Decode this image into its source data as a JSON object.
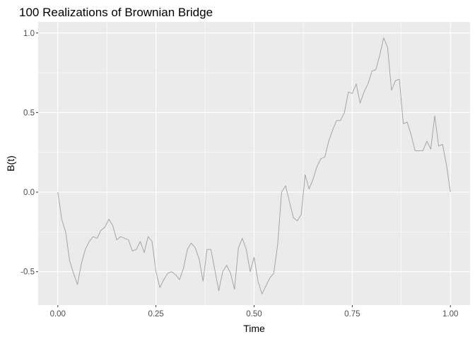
{
  "chart_data": {
    "type": "line",
    "title": "100 Realizations of Brownian Bridge",
    "xlabel": "Time",
    "ylabel": "B(t)",
    "xlim": [
      -0.05,
      1.05
    ],
    "ylim": [
      -0.71,
      1.07
    ],
    "x_ticks": [
      0,
      0.25,
      0.5,
      0.75,
      1.0
    ],
    "x_tick_labels": [
      "0.00",
      "0.25",
      "0.50",
      "0.75",
      "1.00"
    ],
    "y_ticks": [
      -0.5,
      0,
      0.5,
      1.0
    ],
    "y_tick_labels": [
      "-0.5",
      "0.0",
      "0.5",
      "1.0"
    ],
    "grid": true,
    "legend": "none",
    "series": [
      {
        "name": "B(t)",
        "color": "#9e9e9e",
        "values": [
          0.0,
          -0.17,
          -0.25,
          -0.43,
          -0.51,
          -0.58,
          -0.45,
          -0.36,
          -0.31,
          -0.28,
          -0.29,
          -0.24,
          -0.22,
          -0.17,
          -0.21,
          -0.3,
          -0.28,
          -0.29,
          -0.3,
          -0.37,
          -0.36,
          -0.31,
          -0.38,
          -0.28,
          -0.31,
          -0.5,
          -0.6,
          -0.55,
          -0.51,
          -0.5,
          -0.52,
          -0.55,
          -0.48,
          -0.36,
          -0.32,
          -0.35,
          -0.42,
          -0.56,
          -0.36,
          -0.36,
          -0.49,
          -0.62,
          -0.5,
          -0.46,
          -0.51,
          -0.61,
          -0.35,
          -0.29,
          -0.36,
          -0.5,
          -0.41,
          -0.56,
          -0.64,
          -0.59,
          -0.54,
          -0.51,
          -0.33,
          0.0,
          0.04,
          -0.06,
          -0.16,
          -0.18,
          -0.14,
          0.11,
          0.02,
          0.08,
          0.16,
          0.21,
          0.22,
          0.32,
          0.39,
          0.45,
          0.45,
          0.5,
          0.63,
          0.62,
          0.68,
          0.56,
          0.63,
          0.68,
          0.76,
          0.77,
          0.86,
          0.97,
          0.91,
          0.64,
          0.7,
          0.71,
          0.43,
          0.44,
          0.36,
          0.26,
          0.26,
          0.26,
          0.32,
          0.27,
          0.48,
          0.29,
          0.3,
          0.17,
          0.0
        ]
      }
    ]
  }
}
